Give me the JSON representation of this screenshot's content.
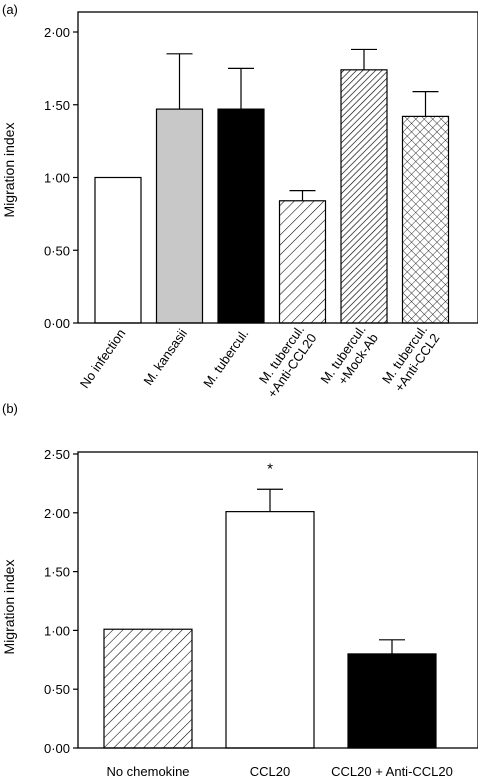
{
  "chart_data": [
    {
      "panel_label": "(a)",
      "type": "bar",
      "ylabel": "Migration index",
      "xlabel": "",
      "ylim": [
        0,
        2.0
      ],
      "yticks": [
        "0·00",
        "0·50",
        "1·00",
        "1·50",
        "2·00"
      ],
      "ytick_values": [
        0,
        0.5,
        1.0,
        1.5,
        2.0
      ],
      "categories": [
        [
          "No infection"
        ],
        [
          "M. kansasii"
        ],
        [
          "M. tubercul."
        ],
        [
          "M. tubercul.",
          "+Anti-CCL20"
        ],
        [
          "M. tubercul.",
          "+Mock-Ab"
        ],
        [
          "M. tubercul.",
          "+Anti-CCL2"
        ]
      ],
      "values": [
        1.0,
        1.47,
        1.47,
        0.84,
        1.74,
        1.42
      ],
      "errors": [
        0,
        0.38,
        0.28,
        0.07,
        0.14,
        0.17
      ],
      "fills": [
        "white",
        "gray",
        "black",
        "hatch",
        "hatch-dense",
        "crosshatch"
      ],
      "grid": false
    },
    {
      "panel_label": "(b)",
      "type": "bar",
      "ylabel": "Migration index",
      "xlabel": "",
      "ylim": [
        0,
        2.5
      ],
      "yticks": [
        "0·00",
        "0·50",
        "1·00",
        "1·50",
        "2·00",
        "2·50"
      ],
      "ytick_values": [
        0,
        0.5,
        1.0,
        1.5,
        2.0,
        2.5
      ],
      "categories": [
        "No chemokine",
        "CCL20",
        "CCL20 + Anti-CCL20"
      ],
      "values": [
        1.01,
        2.01,
        0.8
      ],
      "errors": [
        0,
        0.19,
        0.12
      ],
      "fills": [
        "hatch",
        "white",
        "black"
      ],
      "annotations": [
        {
          "category_index": 1,
          "text": "*"
        }
      ],
      "grid": false
    }
  ],
  "colors": {
    "gray_fill": "#c8c8c8",
    "black_fill": "#000000",
    "axis": "#000000"
  }
}
